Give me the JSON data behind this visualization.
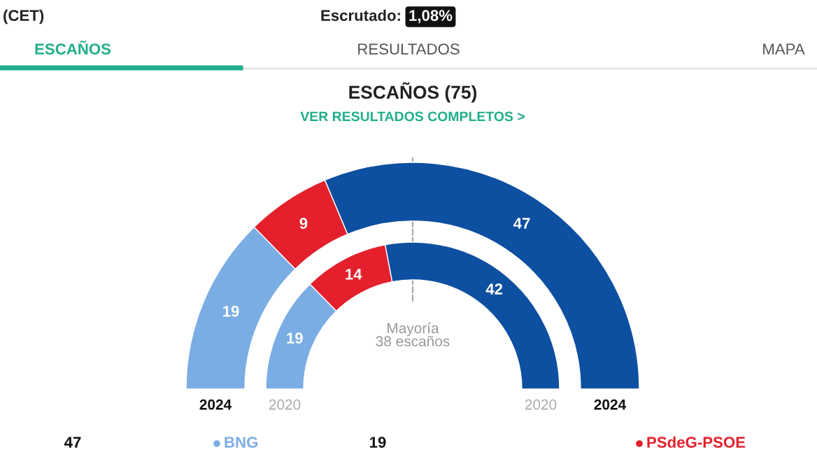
{
  "chart_data": [
    {
      "type": "other",
      "title": "ESCAÑOS (75)",
      "subtitle": "VER RESULTADOS COMPLETOS >",
      "annotations": [
        "(CET)",
        "Escrutado:",
        "1,08%",
        "ESCAÑOS",
        "RESULTADOS",
        "MAPA",
        "47",
        "19"
      ]
    },
    {
      "type": "donut",
      "categories": [
        "BNG",
        "PSdeG-PSOE",
        null
      ],
      "colors": [
        "#7aade3",
        "#e3202b",
        "#0d4fa0"
      ],
      "data_labels": true,
      "legend": "bottom",
      "series": [
        {
          "name": "2024",
          "values": [
            19,
            9,
            47
          ]
        },
        {
          "name": "2020",
          "values": [
            19,
            14,
            42
          ]
        }
      ],
      "annotations": [
        "Mayoría\n38 escaños"
      ]
    }
  ]
}
